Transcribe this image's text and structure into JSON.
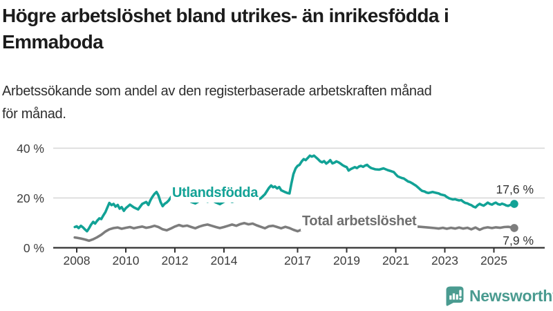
{
  "header": {
    "title_lines": [
      "Högre arbetslöshet bland utrikes- än inrikesfödda i",
      "Emmaboda"
    ],
    "subtitle_lines": [
      "Arbetssökande som andel av den registerbaserade arbetskraften månad",
      "för månad."
    ]
  },
  "footer": {
    "brand": "Newsworthy"
  },
  "colors": {
    "accent_teal": "#12a296",
    "series_gray": "#7d7d7d",
    "grid": "#d8d8d8",
    "axis": "#303030",
    "tick_text": "#3d3d3d",
    "value_text": "#333333",
    "logo_teal": "#4a9b90"
  },
  "chart_data": {
    "type": "line",
    "title": "Högre arbetslöshet bland utrikes- än inrikesfödda i Emmaboda",
    "subtitle": "Arbetssökande som andel av den registerbaserade arbetskraften månad för månad.",
    "xlabel": "",
    "ylabel": "",
    "x_range": [
      2007.9,
      2026.0
    ],
    "ylim": [
      0,
      40
    ],
    "grid": "horizontal",
    "legend_position": "inline-labels",
    "x_axis": {
      "ticks": [
        {
          "value": 2008,
          "label": "2008"
        },
        {
          "value": 2010,
          "label": "2010"
        },
        {
          "value": 2012,
          "label": "2012"
        },
        {
          "value": 2014,
          "label": "2014"
        },
        {
          "value": 2017,
          "label": "2017"
        },
        {
          "value": 2019,
          "label": "2019"
        },
        {
          "value": 2021,
          "label": "2021"
        },
        {
          "value": 2023,
          "label": "2023"
        },
        {
          "value": 2025,
          "label": "2025"
        }
      ]
    },
    "y_axis": {
      "ticks": [
        {
          "value": 0,
          "label": "0 %"
        },
        {
          "value": 20,
          "label": "20 %"
        },
        {
          "value": 40,
          "label": "40 %"
        }
      ]
    },
    "series": [
      {
        "id": "utlandsfodda",
        "label": "Utlandsfödda",
        "color": "#12a296",
        "end_value": 17.6,
        "end_label": "17,6 %",
        "points": [
          [
            2007.92,
            8.3
          ],
          [
            2008.0,
            8.6
          ],
          [
            2008.08,
            7.9
          ],
          [
            2008.17,
            8.8
          ],
          [
            2008.25,
            8.2
          ],
          [
            2008.33,
            7.4
          ],
          [
            2008.42,
            6.6
          ],
          [
            2008.5,
            7.8
          ],
          [
            2008.58,
            9.2
          ],
          [
            2008.67,
            10.4
          ],
          [
            2008.75,
            9.7
          ],
          [
            2008.83,
            10.8
          ],
          [
            2008.92,
            11.8
          ],
          [
            2009.0,
            11.5
          ],
          [
            2009.08,
            12.9
          ],
          [
            2009.17,
            14.3
          ],
          [
            2009.25,
            16.2
          ],
          [
            2009.33,
            18.0
          ],
          [
            2009.42,
            17.1
          ],
          [
            2009.5,
            17.6
          ],
          [
            2009.58,
            16.5
          ],
          [
            2009.67,
            17.2
          ],
          [
            2009.75,
            15.7
          ],
          [
            2009.83,
            16.3
          ],
          [
            2009.92,
            14.8
          ],
          [
            2010.0,
            15.9
          ],
          [
            2010.17,
            17.3
          ],
          [
            2010.33,
            16.2
          ],
          [
            2010.5,
            15.4
          ],
          [
            2010.67,
            17.6
          ],
          [
            2010.83,
            18.4
          ],
          [
            2010.92,
            17.2
          ],
          [
            2011.0,
            19.0
          ],
          [
            2011.08,
            20.4
          ],
          [
            2011.17,
            21.6
          ],
          [
            2011.25,
            22.4
          ],
          [
            2011.33,
            21.0
          ],
          [
            2011.42,
            18.3
          ],
          [
            2011.5,
            16.7
          ],
          [
            2011.58,
            17.6
          ],
          [
            2011.67,
            18.2
          ],
          [
            2011.75,
            19.0
          ],
          [
            2011.83,
            20.2
          ],
          [
            2011.92,
            21.3
          ],
          [
            2012.0,
            21.8
          ],
          [
            2012.08,
            20.9
          ],
          [
            2012.17,
            20.1
          ],
          [
            2012.25,
            19.5
          ],
          [
            2012.33,
            18.8
          ],
          [
            2012.5,
            19.4
          ],
          [
            2012.67,
            18.4
          ],
          [
            2012.83,
            17.8
          ],
          [
            2013.0,
            18.8
          ],
          [
            2013.17,
            19.4
          ],
          [
            2013.33,
            18.5
          ],
          [
            2013.5,
            19.1
          ],
          [
            2013.67,
            18.2
          ],
          [
            2013.83,
            17.5
          ],
          [
            2014.0,
            18.5
          ],
          [
            2014.17,
            19.2
          ],
          [
            2014.33,
            18.4
          ],
          [
            2014.5,
            19.0
          ],
          [
            2014.67,
            19.6
          ],
          [
            2014.83,
            18.9
          ],
          [
            2015.0,
            19.4
          ],
          [
            2015.17,
            20.0
          ],
          [
            2015.33,
            19.2
          ],
          [
            2015.5,
            19.9
          ],
          [
            2015.67,
            21.5
          ],
          [
            2015.83,
            24.0
          ],
          [
            2015.92,
            25.0
          ],
          [
            2016.0,
            24.3
          ],
          [
            2016.08,
            24.6
          ],
          [
            2016.17,
            23.8
          ],
          [
            2016.25,
            24.4
          ],
          [
            2016.33,
            23.1
          ],
          [
            2016.42,
            22.7
          ],
          [
            2016.5,
            22.3
          ],
          [
            2016.58,
            22.0
          ],
          [
            2016.67,
            21.8
          ],
          [
            2016.75,
            25.9
          ],
          [
            2016.83,
            29.6
          ],
          [
            2016.92,
            31.9
          ],
          [
            2017.0,
            32.9
          ],
          [
            2017.08,
            33.3
          ],
          [
            2017.17,
            34.7
          ],
          [
            2017.25,
            35.6
          ],
          [
            2017.33,
            35.2
          ],
          [
            2017.42,
            36.1
          ],
          [
            2017.5,
            37.0
          ],
          [
            2017.58,
            36.6
          ],
          [
            2017.67,
            37.0
          ],
          [
            2017.75,
            36.3
          ],
          [
            2017.83,
            35.6
          ],
          [
            2017.92,
            34.7
          ],
          [
            2018.0,
            34.3
          ],
          [
            2018.08,
            34.8
          ],
          [
            2018.17,
            33.8
          ],
          [
            2018.25,
            34.4
          ],
          [
            2018.33,
            35.2
          ],
          [
            2018.42,
            33.9
          ],
          [
            2018.5,
            34.2
          ],
          [
            2018.58,
            34.7
          ],
          [
            2018.67,
            34.3
          ],
          [
            2018.75,
            33.8
          ],
          [
            2018.83,
            33.2
          ],
          [
            2018.92,
            32.7
          ],
          [
            2019.0,
            32.4
          ],
          [
            2019.08,
            31.0
          ],
          [
            2019.17,
            31.6
          ],
          [
            2019.25,
            32.0
          ],
          [
            2019.33,
            32.4
          ],
          [
            2019.42,
            32.0
          ],
          [
            2019.5,
            32.6
          ],
          [
            2019.58,
            32.9
          ],
          [
            2019.67,
            32.5
          ],
          [
            2019.75,
            33.0
          ],
          [
            2019.83,
            33.3
          ],
          [
            2019.92,
            32.5
          ],
          [
            2020.0,
            32.0
          ],
          [
            2020.17,
            31.5
          ],
          [
            2020.33,
            31.4
          ],
          [
            2020.5,
            31.9
          ],
          [
            2020.67,
            31.2
          ],
          [
            2020.83,
            30.7
          ],
          [
            2020.92,
            30.4
          ],
          [
            2021.0,
            29.5
          ],
          [
            2021.08,
            28.7
          ],
          [
            2021.17,
            28.3
          ],
          [
            2021.25,
            28.0
          ],
          [
            2021.33,
            27.8
          ],
          [
            2021.42,
            27.2
          ],
          [
            2021.5,
            26.6
          ],
          [
            2021.58,
            26.4
          ],
          [
            2021.67,
            25.9
          ],
          [
            2021.75,
            25.4
          ],
          [
            2021.83,
            24.9
          ],
          [
            2021.92,
            24.1
          ],
          [
            2022.0,
            23.4
          ],
          [
            2022.08,
            22.8
          ],
          [
            2022.17,
            22.6
          ],
          [
            2022.25,
            22.2
          ],
          [
            2022.33,
            22.0
          ],
          [
            2022.42,
            22.2
          ],
          [
            2022.5,
            22.4
          ],
          [
            2022.58,
            22.2
          ],
          [
            2022.67,
            22.0
          ],
          [
            2022.75,
            21.8
          ],
          [
            2022.83,
            21.4
          ],
          [
            2022.92,
            21.2
          ],
          [
            2023.0,
            21.0
          ],
          [
            2023.08,
            20.4
          ],
          [
            2023.17,
            19.9
          ],
          [
            2023.25,
            19.6
          ],
          [
            2023.33,
            19.4
          ],
          [
            2023.42,
            19.5
          ],
          [
            2023.5,
            19.2
          ],
          [
            2023.58,
            19.0
          ],
          [
            2023.67,
            19.1
          ],
          [
            2023.75,
            18.5
          ],
          [
            2023.83,
            18.0
          ],
          [
            2023.92,
            17.8
          ],
          [
            2024.0,
            17.4
          ],
          [
            2024.08,
            17.1
          ],
          [
            2024.17,
            16.5
          ],
          [
            2024.25,
            16.2
          ],
          [
            2024.33,
            17.0
          ],
          [
            2024.42,
            17.6
          ],
          [
            2024.5,
            17.2
          ],
          [
            2024.58,
            16.9
          ],
          [
            2024.67,
            17.5
          ],
          [
            2024.75,
            18.1
          ],
          [
            2024.83,
            17.6
          ],
          [
            2024.92,
            17.3
          ],
          [
            2025.0,
            17.8
          ],
          [
            2025.08,
            18.1
          ],
          [
            2025.17,
            17.5
          ],
          [
            2025.25,
            17.3
          ],
          [
            2025.33,
            17.7
          ],
          [
            2025.42,
            17.4
          ],
          [
            2025.5,
            17.0
          ],
          [
            2025.58,
            16.8
          ],
          [
            2025.67,
            17.2
          ],
          [
            2025.75,
            17.4
          ],
          [
            2025.83,
            17.6
          ]
        ]
      },
      {
        "id": "total",
        "label": "Total arbetslöshet",
        "color": "#7d7d7d",
        "end_value": 7.9,
        "end_label": "7,9 %",
        "points": [
          [
            2007.92,
            4.1
          ],
          [
            2008.0,
            4.0
          ],
          [
            2008.17,
            3.7
          ],
          [
            2008.33,
            3.3
          ],
          [
            2008.5,
            2.8
          ],
          [
            2008.67,
            3.4
          ],
          [
            2008.83,
            4.2
          ],
          [
            2009.0,
            5.2
          ],
          [
            2009.17,
            6.5
          ],
          [
            2009.33,
            7.4
          ],
          [
            2009.5,
            7.9
          ],
          [
            2009.67,
            8.1
          ],
          [
            2009.83,
            7.6
          ],
          [
            2010.0,
            8.0
          ],
          [
            2010.17,
            8.3
          ],
          [
            2010.33,
            7.8
          ],
          [
            2010.5,
            8.2
          ],
          [
            2010.67,
            8.5
          ],
          [
            2010.83,
            8.0
          ],
          [
            2011.0,
            8.3
          ],
          [
            2011.17,
            8.8
          ],
          [
            2011.33,
            8.3
          ],
          [
            2011.5,
            7.4
          ],
          [
            2011.67,
            7.0
          ],
          [
            2011.83,
            7.7
          ],
          [
            2012.0,
            8.5
          ],
          [
            2012.17,
            9.1
          ],
          [
            2012.33,
            8.6
          ],
          [
            2012.5,
            8.9
          ],
          [
            2012.67,
            8.3
          ],
          [
            2012.83,
            7.8
          ],
          [
            2013.0,
            8.5
          ],
          [
            2013.17,
            9.0
          ],
          [
            2013.33,
            9.3
          ],
          [
            2013.5,
            8.8
          ],
          [
            2013.67,
            8.3
          ],
          [
            2013.83,
            7.9
          ],
          [
            2014.0,
            8.3
          ],
          [
            2014.17,
            8.8
          ],
          [
            2014.33,
            9.3
          ],
          [
            2014.5,
            8.8
          ],
          [
            2014.67,
            9.5
          ],
          [
            2014.83,
            9.9
          ],
          [
            2015.0,
            9.4
          ],
          [
            2015.17,
            9.7
          ],
          [
            2015.33,
            9.0
          ],
          [
            2015.5,
            8.4
          ],
          [
            2015.67,
            7.8
          ],
          [
            2015.83,
            8.6
          ],
          [
            2016.0,
            8.8
          ],
          [
            2016.17,
            8.3
          ],
          [
            2016.33,
            7.8
          ],
          [
            2016.5,
            8.4
          ],
          [
            2016.67,
            7.9
          ],
          [
            2016.83,
            7.2
          ],
          [
            2017.0,
            6.6
          ],
          [
            2017.17,
            7.3
          ],
          [
            2017.33,
            7.9
          ],
          [
            2017.5,
            8.3
          ],
          [
            2017.67,
            8.6
          ],
          [
            2017.83,
            8.2
          ],
          [
            2018.0,
            8.4
          ],
          [
            2018.25,
            8.9
          ],
          [
            2018.5,
            9.3
          ],
          [
            2018.75,
            9.6
          ],
          [
            2019.0,
            9.5
          ],
          [
            2019.33,
            9.2
          ],
          [
            2019.67,
            9.4
          ],
          [
            2020.0,
            9.8
          ],
          [
            2020.33,
            10.2
          ],
          [
            2020.67,
            9.9
          ],
          [
            2021.0,
            9.5
          ],
          [
            2021.33,
            9.0
          ],
          [
            2021.67,
            8.6
          ],
          [
            2022.0,
            8.4
          ],
          [
            2022.33,
            8.1
          ],
          [
            2022.58,
            7.9
          ],
          [
            2022.75,
            7.7
          ],
          [
            2022.92,
            8.0
          ],
          [
            2023.08,
            7.6
          ],
          [
            2023.25,
            8.0
          ],
          [
            2023.42,
            7.7
          ],
          [
            2023.58,
            8.1
          ],
          [
            2023.75,
            7.7
          ],
          [
            2023.92,
            8.0
          ],
          [
            2024.08,
            7.4
          ],
          [
            2024.25,
            8.1
          ],
          [
            2024.42,
            7.2
          ],
          [
            2024.58,
            7.9
          ],
          [
            2024.75,
            8.2
          ],
          [
            2024.92,
            7.9
          ],
          [
            2025.08,
            8.2
          ],
          [
            2025.25,
            8.0
          ],
          [
            2025.42,
            8.3
          ],
          [
            2025.58,
            8.4
          ],
          [
            2025.75,
            8.1
          ],
          [
            2025.83,
            7.9
          ]
        ]
      }
    ]
  }
}
